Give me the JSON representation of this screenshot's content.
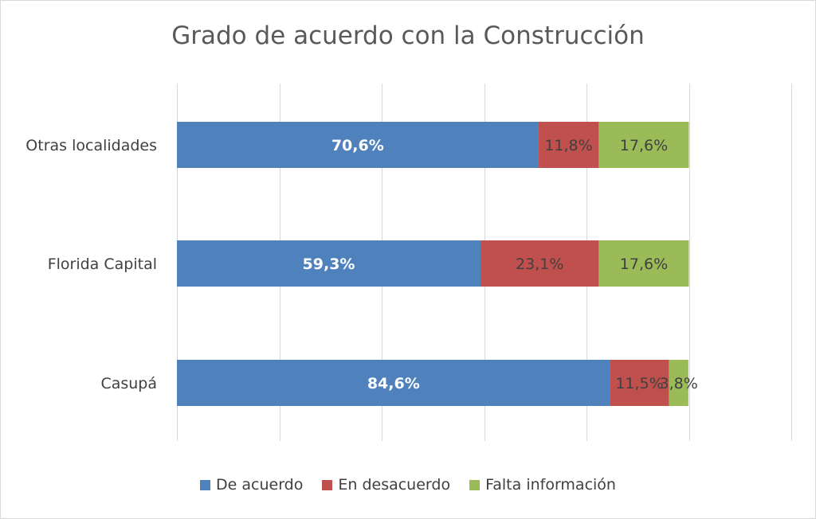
{
  "chart_data": {
    "type": "bar",
    "orientation": "horizontal",
    "stacked": true,
    "title": "Grado de acuerdo con la Construcción",
    "categories": [
      "Otras localidades",
      "Florida Capital",
      "Casupá"
    ],
    "series": [
      {
        "name": "De acuerdo",
        "color": "#4f81bd",
        "label_color": "#ffffff",
        "label_bold": true,
        "values": [
          70.6,
          59.3,
          84.6
        ],
        "labels": [
          "70,6%",
          "59,3%",
          "84,6%"
        ]
      },
      {
        "name": "En desacuerdo",
        "color": "#c0504d",
        "label_color": "#404040",
        "label_bold": false,
        "values": [
          11.8,
          23.1,
          11.5
        ],
        "labels": [
          "11,8%",
          "23,1%",
          "11,5%"
        ]
      },
      {
        "name": "Falta información",
        "color": "#9bbb59",
        "label_color": "#404040",
        "label_bold": false,
        "values": [
          17.6,
          17.6,
          3.8
        ],
        "labels": [
          "17,6%",
          "17,6%",
          "3,8%"
        ]
      }
    ],
    "xlim": [
      0,
      120
    ],
    "x_gridline_step": 20,
    "grid": true,
    "legend_position": "bottom"
  }
}
